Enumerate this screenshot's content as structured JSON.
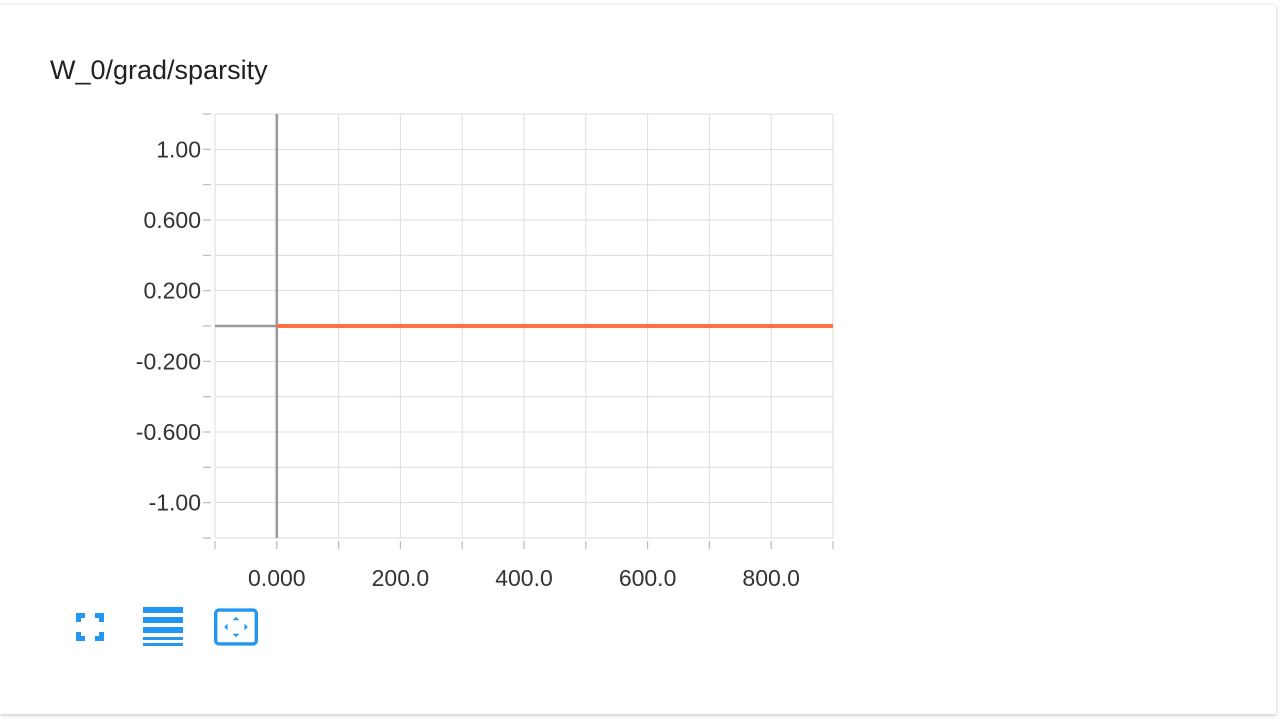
{
  "card": {
    "title": "W_0/grad/sparsity"
  },
  "chart_data": {
    "type": "line",
    "title": "W_0/grad/sparsity",
    "xlabel": "",
    "ylabel": "",
    "xlim": [
      -100,
      900
    ],
    "ylim": [
      -1.2,
      1.2
    ],
    "x_ticks": [
      0,
      200,
      400,
      600,
      800
    ],
    "x_tick_labels": [
      "0.000",
      "200.0",
      "400.0",
      "600.0",
      "800.0"
    ],
    "y_ticks": [
      1.0,
      0.6,
      0.2,
      -0.2,
      -0.6,
      -1.0
    ],
    "y_tick_labels": [
      "1.00",
      "0.600",
      "0.200",
      "-0.200",
      "-0.600",
      "-1.00"
    ],
    "grid": true,
    "series": [
      {
        "color": "#ff7043",
        "x": [
          0,
          900
        ],
        "y": [
          0,
          0
        ]
      }
    ]
  },
  "toolbar": {
    "buttons": [
      {
        "name": "fullscreen-button",
        "icon": "fullscreen-icon"
      },
      {
        "name": "toggle-log-scale-button",
        "icon": "menu-lines-icon"
      },
      {
        "name": "fit-domain-button",
        "icon": "fit-domain-icon"
      }
    ],
    "accent": "#2196f3"
  }
}
